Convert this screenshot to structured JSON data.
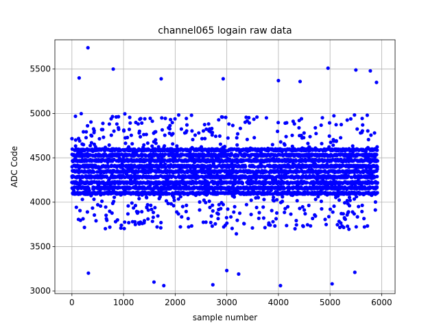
{
  "chart_data": {
    "type": "scatter",
    "title": "channel065 logain raw data",
    "xlabel": "sample number",
    "ylabel": "ADC Code",
    "xlim": [
      -330,
      6260
    ],
    "ylim": [
      2970,
      5830
    ],
    "xticks": [
      0,
      1000,
      2000,
      3000,
      4000,
      5000,
      6000
    ],
    "yticks": [
      3000,
      3500,
      4000,
      4500,
      5000,
      5500
    ],
    "grid": true,
    "marker_color": "#0000ff",
    "n_samples": 5920,
    "core_levels": [
      4100,
      4160,
      4220,
      4285,
      4345,
      4405,
      4470,
      4530,
      4590
    ],
    "core_range": [
      4050,
      4650
    ],
    "notable_points": [
      {
        "x": 310,
        "y": 5740
      },
      {
        "x": 800,
        "y": 5500
      },
      {
        "x": 4960,
        "y": 5510
      },
      {
        "x": 5500,
        "y": 5490
      },
      {
        "x": 5780,
        "y": 5480
      },
      {
        "x": 140,
        "y": 5400
      },
      {
        "x": 1730,
        "y": 5390
      },
      {
        "x": 2930,
        "y": 5390
      },
      {
        "x": 4000,
        "y": 5370
      },
      {
        "x": 4420,
        "y": 5360
      },
      {
        "x": 5900,
        "y": 5350
      },
      {
        "x": 1780,
        "y": 3060
      },
      {
        "x": 2730,
        "y": 3070
      },
      {
        "x": 4040,
        "y": 3060
      },
      {
        "x": 5040,
        "y": 3080
      },
      {
        "x": 1590,
        "y": 3100
      },
      {
        "x": 320,
        "y": 3200
      },
      {
        "x": 3230,
        "y": 3190
      },
      {
        "x": 5480,
        "y": 3210
      },
      {
        "x": 3000,
        "y": 3230
      }
    ]
  }
}
